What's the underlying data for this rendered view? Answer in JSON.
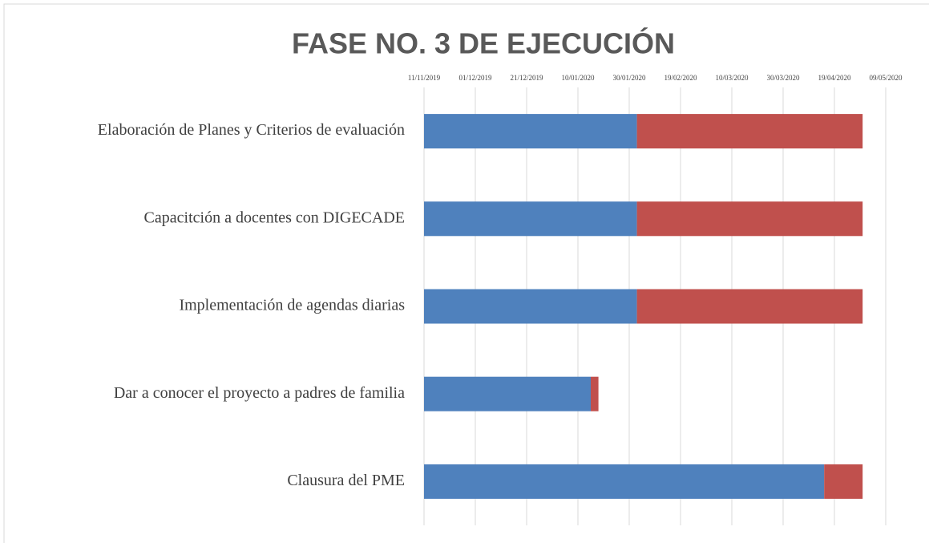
{
  "chart_data": {
    "type": "gantt",
    "title": "FASE NO. 3 DE EJECUCIÓN",
    "categories": [
      "Elaboración de Planes y Criterios de evaluación",
      "Capacitción a docentes con DIGECADE",
      "Implementación de agendas diarias",
      "Dar a conocer el proyecto a padres de familia",
      "Clausura del PME"
    ],
    "series": [
      {
        "color": "#4f81bd",
        "values": [
          43863,
          43863,
          43863,
          43845,
          43936
        ]
      },
      {
        "color": "#c0504d",
        "values": [
          88,
          88,
          88,
          3,
          15
        ]
      }
    ],
    "xlim": [
      43780,
      43960
    ],
    "xticks": [
      {
        "value": 43780,
        "label": "11/11/2019"
      },
      {
        "value": 43800,
        "label": "01/12/2019"
      },
      {
        "value": 43820,
        "label": "21/12/2019"
      },
      {
        "value": 43840,
        "label": "10/01/2020"
      },
      {
        "value": 43860,
        "label": "30/01/2020"
      },
      {
        "value": 43880,
        "label": "19/02/2020"
      },
      {
        "value": 43900,
        "label": "10/03/2020"
      },
      {
        "value": 43920,
        "label": "30/03/2020"
      },
      {
        "value": 43940,
        "label": "19/04/2020"
      },
      {
        "value": 43960,
        "label": "09/05/2020"
      }
    ],
    "grid": true
  }
}
